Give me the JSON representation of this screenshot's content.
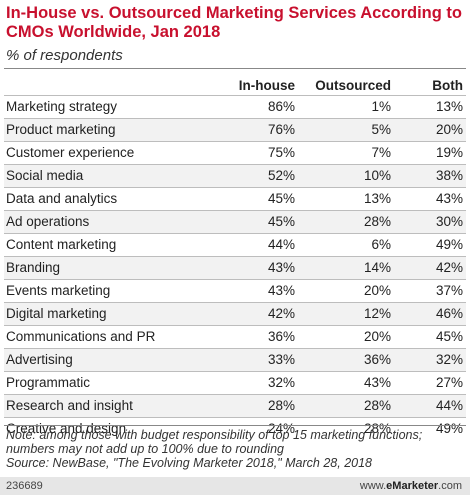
{
  "title": "In-House vs. Outsourced Marketing Services According to CMOs Worldwide, Jan 2018",
  "subtitle": "% of respondents",
  "note": "Note: among those with budget responsibility of top 15 marketing functions; numbers may not add up to 100% due to rounding",
  "source": "Source: NewBase, \"The Evolving Marketer 2018,\" March 28, 2018",
  "chart_id": "236689",
  "brand": {
    "prefix": "www.",
    "name": "eMarketer",
    "suffix": ".com"
  },
  "chart_data": {
    "type": "table",
    "title": "In-House vs. Outsourced Marketing Services According to CMOs Worldwide, Jan 2018",
    "subtitle": "% of respondents",
    "columns": [
      "In-house",
      "Outsourced",
      "Both"
    ],
    "rows": [
      {
        "label": "Marketing strategy",
        "values": [
          "86%",
          "1%",
          "13%"
        ]
      },
      {
        "label": "Product marketing",
        "values": [
          "76%",
          "5%",
          "20%"
        ]
      },
      {
        "label": "Customer experience",
        "values": [
          "75%",
          "7%",
          "19%"
        ]
      },
      {
        "label": "Social media",
        "values": [
          "52%",
          "10%",
          "38%"
        ]
      },
      {
        "label": "Data and analytics",
        "values": [
          "45%",
          "13%",
          "43%"
        ]
      },
      {
        "label": "Ad operations",
        "values": [
          "45%",
          "28%",
          "30%"
        ]
      },
      {
        "label": "Content marketing",
        "values": [
          "44%",
          "6%",
          "49%"
        ]
      },
      {
        "label": "Branding",
        "values": [
          "43%",
          "14%",
          "42%"
        ]
      },
      {
        "label": "Events marketing",
        "values": [
          "43%",
          "20%",
          "37%"
        ]
      },
      {
        "label": "Digital marketing",
        "values": [
          "42%",
          "12%",
          "46%"
        ]
      },
      {
        "label": "Communications and PR",
        "values": [
          "36%",
          "20%",
          "45%"
        ]
      },
      {
        "label": "Advertising",
        "values": [
          "33%",
          "36%",
          "32%"
        ]
      },
      {
        "label": "Programmatic",
        "values": [
          "32%",
          "43%",
          "27%"
        ]
      },
      {
        "label": "Research and insight",
        "values": [
          "28%",
          "28%",
          "44%"
        ]
      },
      {
        "label": "Creative and design",
        "values": [
          "24%",
          "28%",
          "49%"
        ]
      }
    ]
  }
}
